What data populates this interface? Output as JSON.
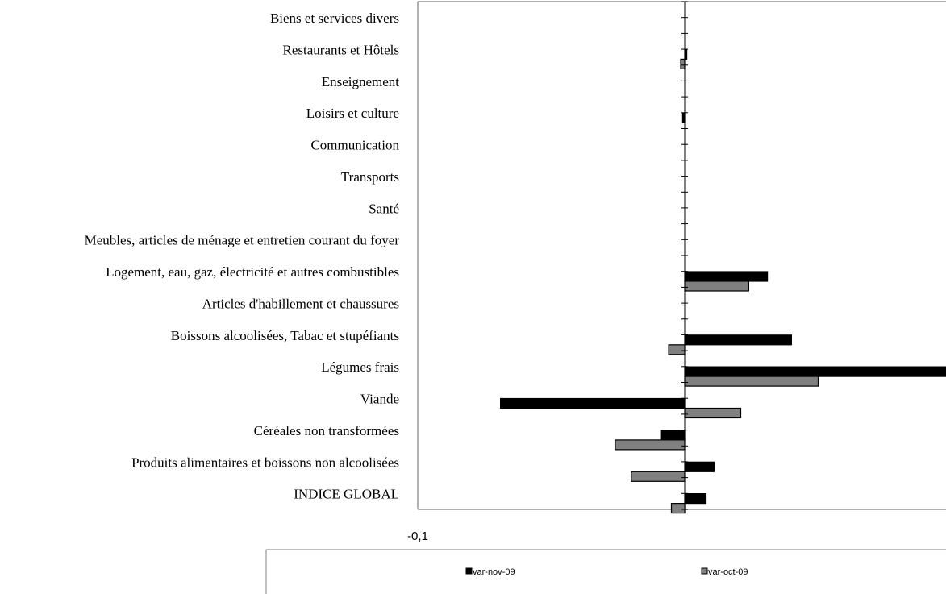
{
  "chart_data": {
    "type": "bar",
    "orientation": "horizontal",
    "categories": [
      "Biens et services divers",
      "Restaurants et Hôtels",
      "Enseignement",
      "Loisirs et culture",
      "Communication",
      "Transports",
      "Santé",
      "Meubles, articles de ménage et entretien courant du foyer",
      "Logement, eau, gaz, électricité et autres combustibles",
      "Articles d'habillement et chaussures",
      "Boissons alcoolisées,  Tabac et stupéfiants",
      "Légumes frais",
      "Viande",
      "Céréales non transformées",
      "Produits alimentaires et boissons non alcoolisées",
      "INDICE GLOBAL"
    ],
    "series": [
      {
        "name": "var-nov-09",
        "color": "#000000",
        "values": [
          0,
          0.0008,
          0,
          -0.0008,
          0,
          0,
          0,
          0,
          0.031,
          0,
          0.04,
          0.099,
          -0.069,
          -0.009,
          0.011,
          0.008
        ]
      },
      {
        "name": "var-oct-09",
        "color": "#808080",
        "values": [
          0,
          -0.0015,
          0,
          0,
          0,
          0,
          0,
          0,
          0.024,
          0,
          -0.006,
          0.05,
          0.021,
          -0.026,
          -0.02,
          -0.005
        ]
      }
    ],
    "xlim": [
      -0.1,
      0.1
    ],
    "x_tick_labels": [
      "-0,1"
    ],
    "legend_position": "bottom",
    "grid": false
  }
}
